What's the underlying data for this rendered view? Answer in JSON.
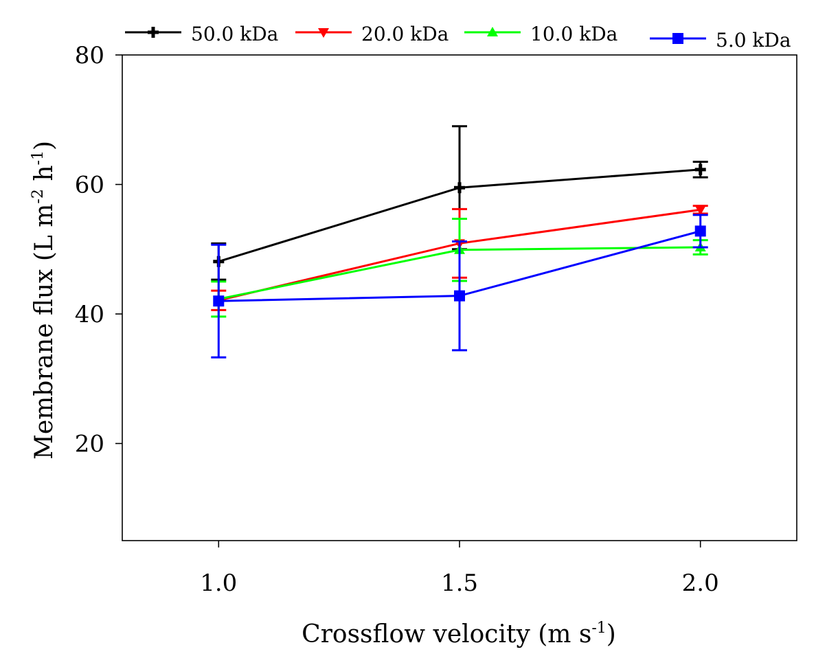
{
  "chart_data": {
    "type": "line",
    "title": "",
    "xlabel": {
      "text": "Crossflow velocity (m s",
      "sup": "-1",
      "close": ")"
    },
    "ylabel": {
      "pre": "Membrane flux (L m",
      "sup1": "-2",
      "mid": " h",
      "sup2": "-1",
      "close": ")"
    },
    "xlim": [
      0.8,
      2.2
    ],
    "ylim": [
      5,
      80
    ],
    "xticks": [
      1.0,
      1.5,
      2.0
    ],
    "xtick_labels": [
      "1.0",
      "1.5",
      "2.0"
    ],
    "yticks": [
      20,
      40,
      60,
      80
    ],
    "ytick_labels": [
      "20",
      "40",
      "60",
      "80"
    ],
    "grid": false,
    "legend_position": "top",
    "x": [
      1.0,
      1.5,
      2.0
    ],
    "series": [
      {
        "name": "50.0 kDa",
        "color": "#000000",
        "marker": "plus",
        "values": [
          48.1,
          59.5,
          62.3
        ],
        "errors": [
          2.8,
          9.5,
          1.2
        ]
      },
      {
        "name": "20.0 kDa",
        "color": "#ff0000",
        "marker": "triangle-down",
        "values": [
          42.1,
          50.9,
          56.1
        ],
        "errors": [
          1.5,
          5.3,
          0.6
        ]
      },
      {
        "name": "10.0 kDa",
        "color": "#00ff00",
        "marker": "triangle-up",
        "values": [
          42.3,
          49.9,
          50.3
        ],
        "errors": [
          2.7,
          4.8,
          1.1
        ]
      },
      {
        "name": "5.0 kDa",
        "color": "#0000ff",
        "marker": "square",
        "values": [
          42.0,
          42.8,
          52.8
        ],
        "errors": [
          8.7,
          8.4,
          2.5
        ]
      }
    ]
  }
}
